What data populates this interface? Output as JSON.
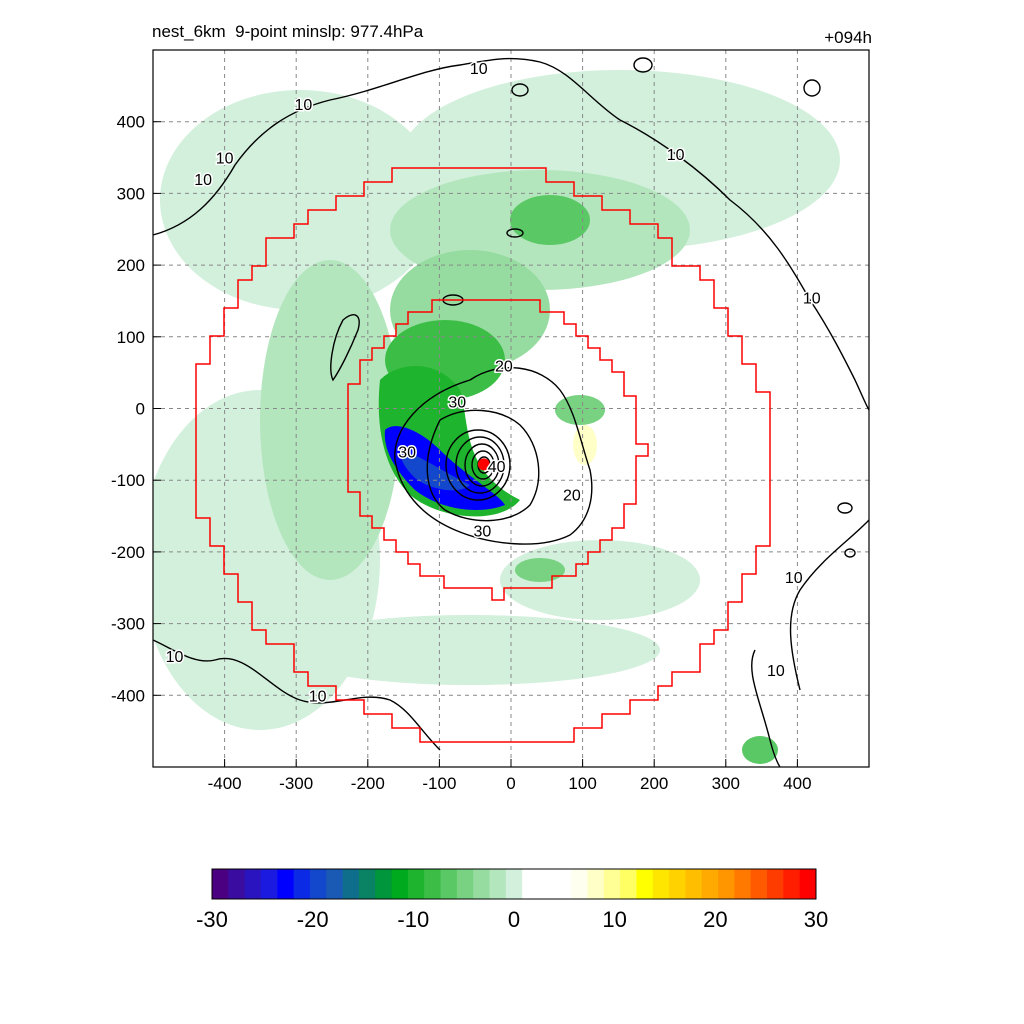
{
  "header": {
    "left_title": "nest_6km  9-point minslp: 977.4hPa",
    "right_title": "+094h"
  },
  "chart_data": {
    "type": "heatmap",
    "title": "nest_6km  9-point minslp: 977.4hPa",
    "time_label": "+094h",
    "xlim": [
      -500,
      500
    ],
    "ylim": [
      -500,
      500
    ],
    "x_ticks": [
      -400,
      -300,
      -200,
      -100,
      0,
      100,
      200,
      300,
      400
    ],
    "y_ticks": [
      400,
      300,
      200,
      100,
      0,
      -100,
      -200,
      -300,
      -400
    ],
    "grid": true,
    "center": {
      "x": -38,
      "y": -78
    },
    "contour_levels": [
      10,
      20,
      30,
      40
    ],
    "contour_labels": [
      {
        "text": "10",
        "x": -290,
        "y": 425
      },
      {
        "text": "10",
        "x": -400,
        "y": 350
      },
      {
        "text": "10",
        "x": -430,
        "y": 320
      },
      {
        "text": "10",
        "x": -45,
        "y": 475
      },
      {
        "text": "10",
        "x": 230,
        "y": 355
      },
      {
        "text": "10",
        "x": 420,
        "y": 155
      },
      {
        "text": "10",
        "x": 395,
        "y": -235
      },
      {
        "text": "10",
        "x": 370,
        "y": -365
      },
      {
        "text": "10",
        "x": -470,
        "y": -345
      },
      {
        "text": "10",
        "x": -270,
        "y": -400
      },
      {
        "text": "20",
        "x": -10,
        "y": 60
      },
      {
        "text": "20",
        "x": 85,
        "y": -120
      },
      {
        "text": "30",
        "x": -75,
        "y": 10
      },
      {
        "text": "30",
        "x": -40,
        "y": -170
      },
      {
        "text": "30",
        "x": -145,
        "y": -60
      },
      {
        "text": "40",
        "x": -20,
        "y": -80
      }
    ],
    "colorbar": {
      "ticks": [
        -30,
        -20,
        -10,
        0,
        10,
        20,
        30
      ],
      "range": [
        -30,
        30
      ],
      "colors": [
        "#4b0082",
        "#3a0ca0",
        "#2a14c0",
        "#1a1ae0",
        "#0000ff",
        "#0a2ae6",
        "#1448cc",
        "#1a5ab4",
        "#0f6e8c",
        "#0a8264",
        "#00963c",
        "#00aa1e",
        "#1eb42d",
        "#3cbe46",
        "#5ac864",
        "#78d282",
        "#96dca0",
        "#b4e6be",
        "#d2f0dc",
        "#ffffff",
        "#ffffff",
        "#ffffff",
        "#fffff0",
        "#ffffc8",
        "#ffff96",
        "#ffff64",
        "#ffff00",
        "#ffe600",
        "#ffd200",
        "#ffbe00",
        "#ffaa00",
        "#ff9600",
        "#ff7800",
        "#ff5a00",
        "#ff3c00",
        "#ff1e00",
        "#ff0000"
      ]
    }
  },
  "colors": {
    "contour": "#000000",
    "boundary": "#ff0000",
    "grid": "#888888",
    "center_mark": "#ff0000"
  }
}
